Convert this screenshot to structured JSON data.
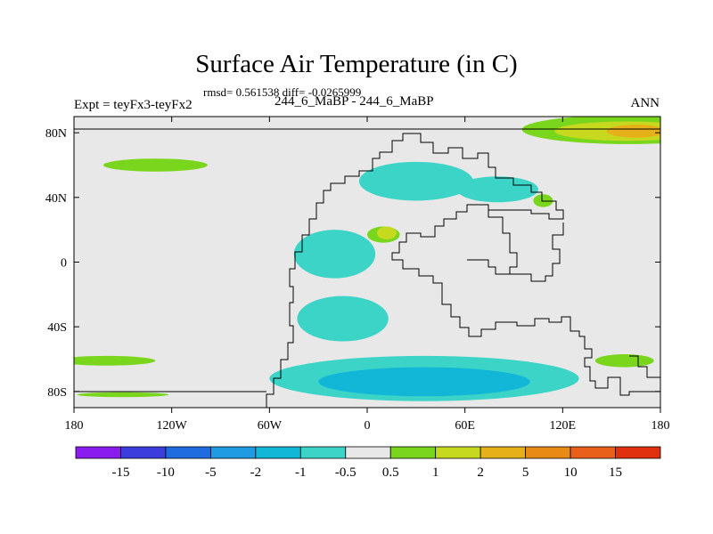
{
  "header": {
    "title": "Surface Air Temperature (in C)",
    "stats": "rmsd= 0.561538 diff= -0.0265999",
    "period": "244_6_MaBP - 244_6_MaBP",
    "experiment": "Expt = teyFx3-teyFx2",
    "season": "ANN"
  },
  "chart_data": {
    "type": "heatmap",
    "title": "Surface Air Temperature (in C)",
    "subtitle": "rmsd= 0.561538 diff= -0.0265999",
    "x_ticks": [
      "180",
      "120W",
      "60W",
      "0",
      "60E",
      "120E",
      "180"
    ],
    "y_ticks": [
      "80N",
      "40N",
      "0",
      "40S",
      "80S"
    ],
    "xlim": [
      -180,
      180
    ],
    "ylim": [
      -90,
      90
    ],
    "colorbar": {
      "labels": [
        "-15",
        "-10",
        "-5",
        "-2",
        "-1",
        "-0.5",
        "0.5",
        "1",
        "2",
        "5",
        "10",
        "15"
      ],
      "colors": [
        "#8b1cf0",
        "#3b3ddc",
        "#1f6be0",
        "#1f9be3",
        "#12b7d8",
        "#3dd4c8",
        "#e8e8e8",
        "#7ad61c",
        "#c6d91e",
        "#e6b01a",
        "#e88a14",
        "#e8601a",
        "#e03010"
      ]
    },
    "field_background": "#e8e8e8",
    "regions": [
      {
        "level": "1",
        "color": "#7ad61c",
        "lon": 160,
        "lat": 82,
        "rx": 65,
        "ry": 9
      },
      {
        "level": "2",
        "color": "#c6d91e",
        "lon": 160,
        "lat": 81,
        "rx": 45,
        "ry": 6
      },
      {
        "level": "5",
        "color": "#e6b01a",
        "lon": 165,
        "lat": 81,
        "rx": 18,
        "ry": 4
      },
      {
        "level": "1",
        "color": "#7ad61c",
        "lon": -130,
        "lat": 60,
        "rx": 32,
        "ry": 4
      },
      {
        "level": "1",
        "color": "#7ad61c",
        "lon": -160,
        "lat": -61,
        "rx": 30,
        "ry": 3
      },
      {
        "level": "1",
        "color": "#7ad61c",
        "lon": 158,
        "lat": -61,
        "rx": 18,
        "ry": 4
      },
      {
        "level": "1",
        "color": "#7ad61c",
        "lon": -150,
        "lat": -82,
        "rx": 28,
        "ry": 1.5
      },
      {
        "level": "-0.5",
        "color": "#3dd4c8",
        "lon": 35,
        "lat": -72,
        "rx": 95,
        "ry": 14
      },
      {
        "level": "-1",
        "color": "#12b7d8",
        "lon": 35,
        "lat": -74,
        "rx": 65,
        "ry": 9
      },
      {
        "level": "-0.5",
        "color": "#3dd4c8",
        "lon": -20,
        "lat": 5,
        "rx": 25,
        "ry": 15
      },
      {
        "level": "-0.5",
        "color": "#3dd4c8",
        "lon": -15,
        "lat": -35,
        "rx": 28,
        "ry": 14
      },
      {
        "level": "-0.5",
        "color": "#3dd4c8",
        "lon": 30,
        "lat": 50,
        "rx": 35,
        "ry": 12
      },
      {
        "level": "-0.5",
        "color": "#3dd4c8",
        "lon": 80,
        "lat": 45,
        "rx": 25,
        "ry": 8
      },
      {
        "level": "1",
        "color": "#7ad61c",
        "lon": 10,
        "lat": 17,
        "rx": 10,
        "ry": 5
      },
      {
        "level": "2",
        "color": "#c6d91e",
        "lon": 12,
        "lat": 18,
        "rx": 6,
        "ry": 4
      },
      {
        "level": "1",
        "color": "#7ad61c",
        "lon": 108,
        "lat": 38,
        "rx": 6,
        "ry": 4
      }
    ]
  }
}
